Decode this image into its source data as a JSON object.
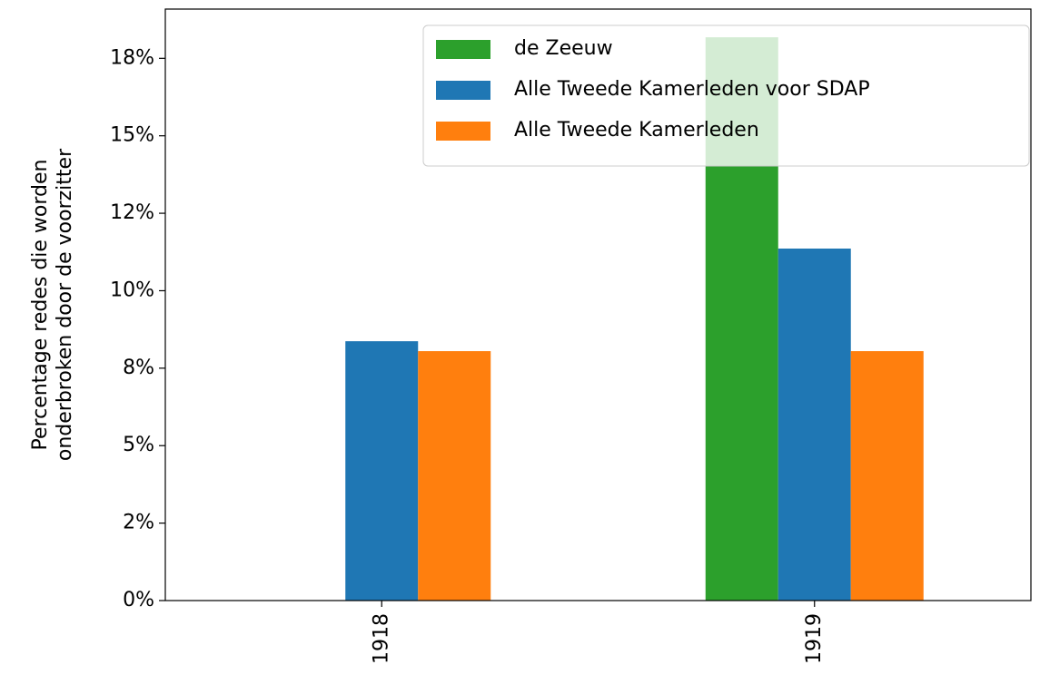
{
  "chart_data": {
    "type": "bar",
    "ylabel": [
      "Percentage redes die worden",
      "onderbroken door de voorzitter"
    ],
    "categories": [
      "1918",
      "1919"
    ],
    "series": [
      {
        "name": "de Zeeuw",
        "color": "#2ca02c",
        "values": [
          null,
          18.18
        ]
      },
      {
        "name": "Alle Tweede Kamerleden voor SDAP",
        "color": "#1f77b4",
        "values": [
          8.37,
          11.36
        ]
      },
      {
        "name": "Alle Tweede Kamerleden",
        "color": "#ff7f0e",
        "values": [
          8.05,
          8.05
        ]
      }
    ],
    "ylim": [
      0,
      19.09
    ],
    "yticks": [
      {
        "value": 0,
        "label": "0%"
      },
      {
        "value": 2.5,
        "label": "2%"
      },
      {
        "value": 5,
        "label": "5%"
      },
      {
        "value": 7.5,
        "label": "8%"
      },
      {
        "value": 10,
        "label": "10%"
      },
      {
        "value": 12.5,
        "label": "12%"
      },
      {
        "value": 15,
        "label": "15%"
      },
      {
        "value": 17.5,
        "label": "18%"
      }
    ],
    "legend": "upper right"
  }
}
